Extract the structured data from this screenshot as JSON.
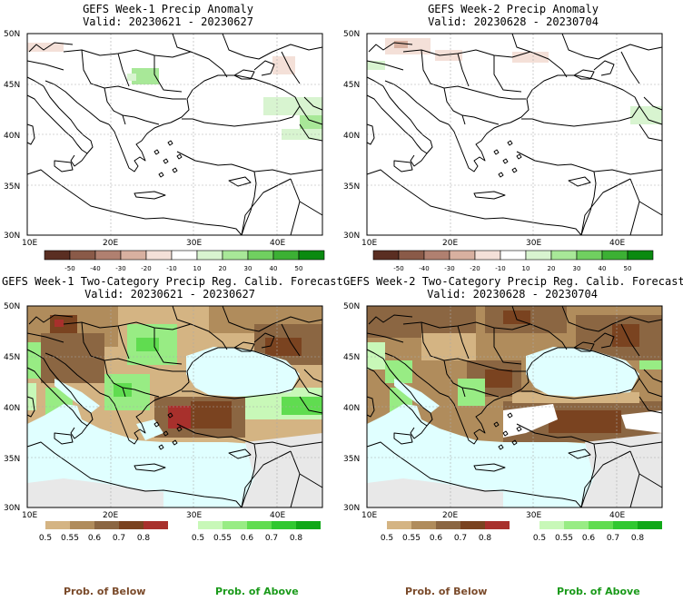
{
  "titles": {
    "p1": [
      "GEFS Week-1 Precip Anomaly",
      "Valid: 20230621 - 20230627"
    ],
    "p2": [
      "GEFS Week-2 Precip Anomaly",
      "Valid: 20230628 - 20230704"
    ],
    "p3": [
      "GEFS Week-1 Two-Category Precip Reg. Calib. Forecast",
      "Valid: 20230621 - 20230627"
    ],
    "p4": [
      "GEFS Week-2 Two-Category Precip Reg. Calib. Forecast",
      "Valid: 20230628 - 20230704"
    ]
  },
  "axes": {
    "lon_labels": [
      "10E",
      "20E",
      "30E",
      "40E"
    ],
    "lat_labels": [
      "50N",
      "45N",
      "40N",
      "35N",
      "30N"
    ]
  },
  "anomaly_scale": {
    "labels": [
      "-50",
      "-40",
      "-30",
      "-20",
      "-10",
      "10",
      "20",
      "30",
      "40",
      "50"
    ],
    "colors": [
      "#5a2e22",
      "#8a5a48",
      "#b08070",
      "#d8b0a0",
      "#f4e0d8",
      "#ffffff",
      "#d8f4d0",
      "#a8e898",
      "#70d060",
      "#3cb034",
      "#0a8a10"
    ]
  },
  "prob_scale": {
    "below_labels": [
      "0.5",
      "0.55",
      "0.6",
      "0.7",
      "0.8"
    ],
    "below_colors": [
      "#d4b483",
      "#b08c5c",
      "#8b6642",
      "#7a4320",
      "#a8302c"
    ],
    "above_labels": [
      "0.5",
      "0.55",
      "0.6",
      "0.7",
      "0.8"
    ],
    "above_colors": [
      "#c8f8b8",
      "#98ec84",
      "#60dc50",
      "#30c830",
      "#10a818"
    ]
  },
  "legend": {
    "below": "Prob. of Below",
    "above": "Prob. of Above",
    "below_color": "#7a4a2a",
    "above_color": "#1a9a1a"
  }
}
